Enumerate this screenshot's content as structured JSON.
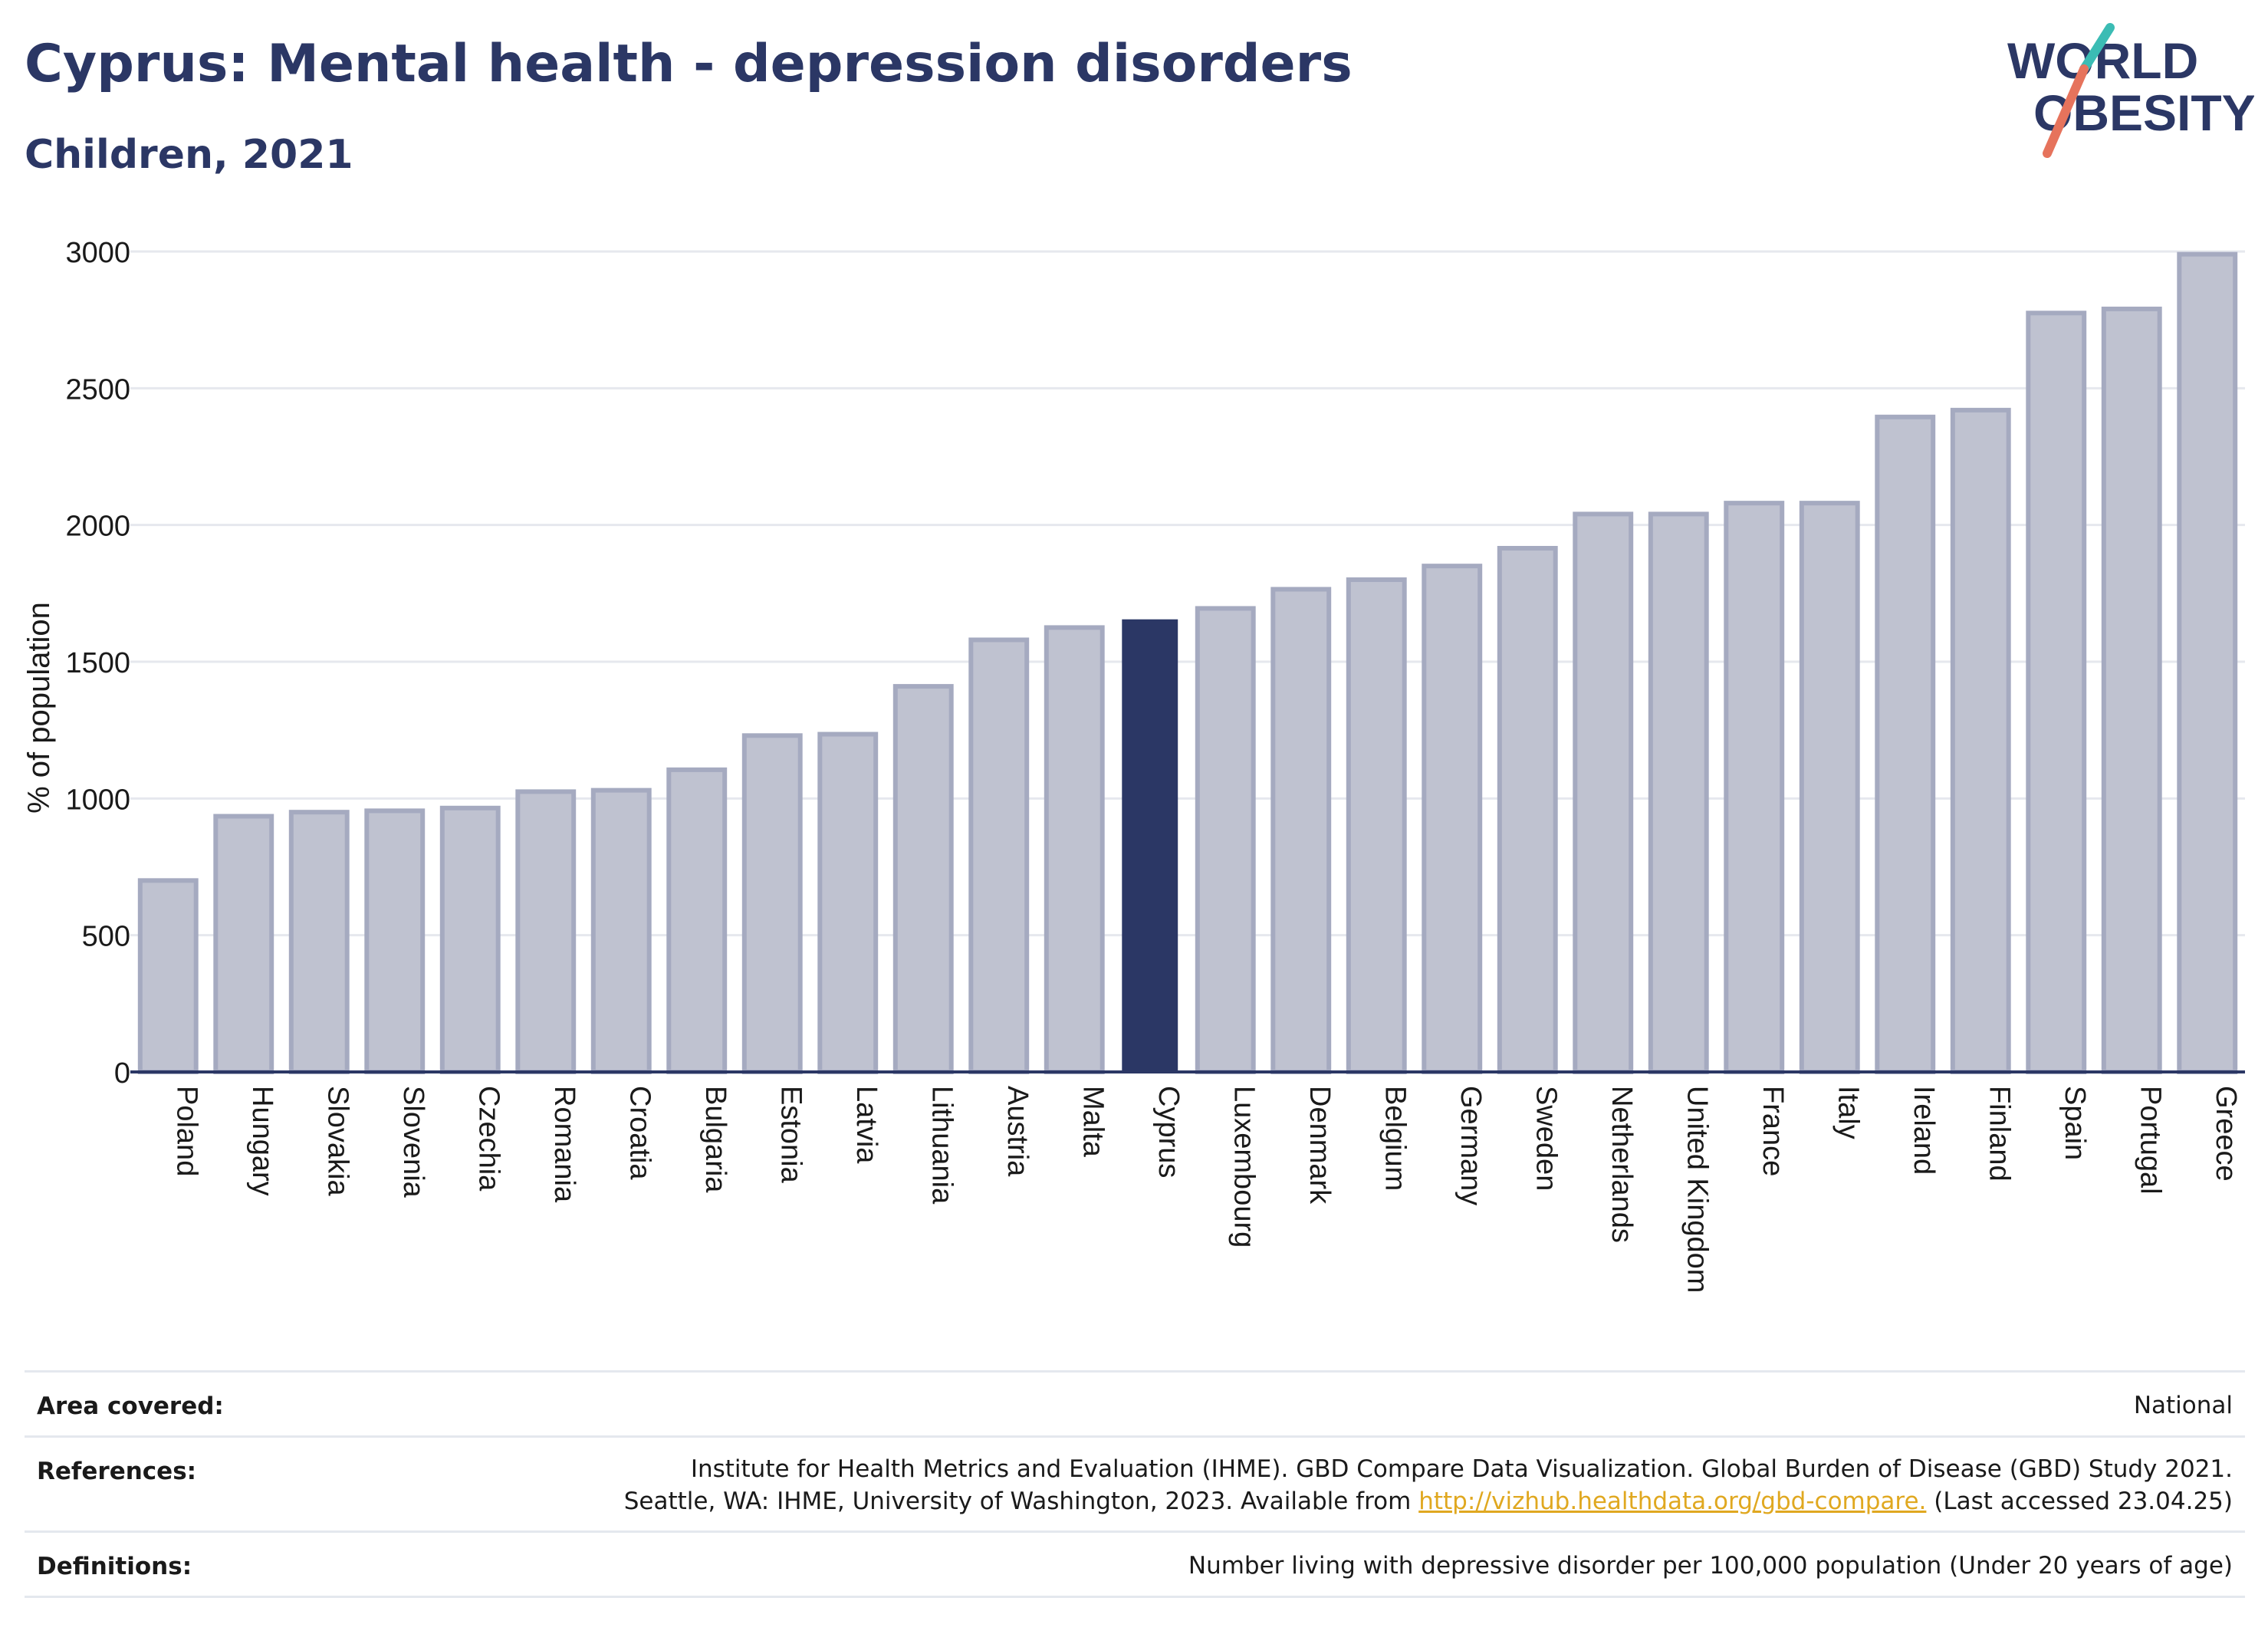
{
  "header": {
    "title": "Cyprus: Mental health - depression disorders",
    "subtitle": "Children, 2021"
  },
  "logo": {
    "line1": "WORLD",
    "line2": "OBESITY"
  },
  "chart_data": {
    "type": "bar",
    "ylabel": "% of population",
    "ylim": [
      0,
      3000
    ],
    "yticks": [
      0,
      500,
      1000,
      1500,
      2000,
      2500,
      3000
    ],
    "grid": true,
    "highlight": "Cyprus",
    "categories": [
      "Poland",
      "Hungary",
      "Slovakia",
      "Slovenia",
      "Czechia",
      "Romania",
      "Croatia",
      "Bulgaria",
      "Estonia",
      "Latvia",
      "Lithuania",
      "Austria",
      "Malta",
      "Cyprus",
      "Luxembourg",
      "Denmark",
      "Belgium",
      "Germany",
      "Sweden",
      "Netherlands",
      "United Kingdom",
      "France",
      "Italy",
      "Ireland",
      "Finland",
      "Spain",
      "Portugal",
      "Greece"
    ],
    "values": [
      700,
      935,
      950,
      955,
      965,
      1025,
      1030,
      1105,
      1230,
      1235,
      1410,
      1580,
      1625,
      1655,
      1695,
      1765,
      1800,
      1850,
      1915,
      2040,
      2040,
      2080,
      2080,
      2395,
      2420,
      2775,
      2790,
      2990
    ],
    "colors": {
      "bar": "#bfc2d0",
      "bar_stroke": "#a5aac0",
      "highlight": "#2b3765",
      "axis": "#2b3765",
      "grid": "#e6e8ee"
    }
  },
  "info": {
    "area_label": "Area covered:",
    "area_value": "National",
    "references_label": "References:",
    "references_line1": "Institute for Health Metrics and Evaluation (IHME). GBD Compare Data Visualization. Global Burden of Disease (GBD) Study 2021.",
    "references_line2_pre": "Seattle, WA: IHME, University of Washington, 2023. Available from",
    "references_link": "http://vizhub.healthdata.org/gbd-compare.",
    "references_line2_post": "(Last accessed 23.04.25)",
    "definitions_label": "Definitions:",
    "definitions_value": "Number living with depressive disorder per 100,000 population (Under 20 years of age)"
  }
}
